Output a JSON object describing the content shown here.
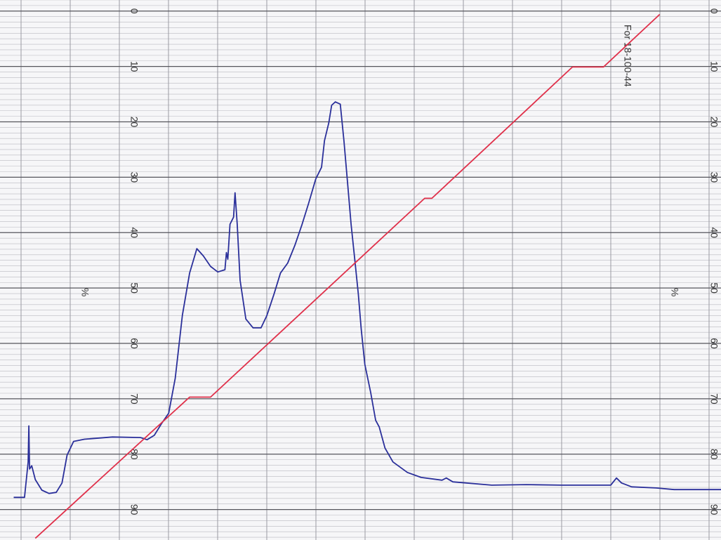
{
  "chart_data": {
    "type": "line",
    "annotation": "For 18-100-44",
    "unit_label": "%",
    "xlim": [
      0,
      100
    ],
    "ylim": [
      -2,
      95.5
    ],
    "y_inverted": true,
    "yticks": [
      0,
      10,
      20,
      30,
      40,
      50,
      60,
      70,
      80,
      90
    ],
    "grid": true,
    "series": [
      {
        "color": "#2a2f9a",
        "x": [
          1.9,
          3.4,
          3.7,
          3.9,
          4.0,
          4.1,
          4.4,
          4.9,
          5.8,
          6.8,
          7.8,
          8.6,
          9.3,
          10.2,
          11.7,
          15.6,
          19.5,
          20.4,
          21.4,
          22.4,
          23.4,
          24.3,
          25.3,
          26.3,
          27.3,
          28.2,
          29.2,
          30.2,
          31.2,
          31.4,
          31.6,
          31.9,
          32.4,
          32.6,
          32.9,
          33.3,
          34.1,
          35.1,
          36.2,
          37.0,
          38.0,
          38.9,
          39.9,
          40.9,
          41.9,
          42.8,
          43.8,
          44.6,
          45.0,
          45.6,
          46.0,
          46.5,
          47.2,
          47.7,
          48.2,
          48.7,
          49.2,
          49.7,
          50.1,
          50.6,
          51.4,
          52.1,
          52.6,
          53.4,
          54.5,
          56.5,
          58.4,
          61.3,
          61.9,
          62.8,
          68.2,
          73.0,
          77.9,
          84.7,
          85.5,
          86.2,
          87.6,
          91.0,
          93.5,
          100
        ],
        "values": [
          87.8,
          87.8,
          84.0,
          81.4,
          74.9,
          82.7,
          82.1,
          84.6,
          86.5,
          87.1,
          86.9,
          85.2,
          80.2,
          77.7,
          77.3,
          76.9,
          77.0,
          77.4,
          76.6,
          74.5,
          72.6,
          66.3,
          54.9,
          47.3,
          42.9,
          44.2,
          46.1,
          47.1,
          46.7,
          43.6,
          44.8,
          38.5,
          37.2,
          32.8,
          38.5,
          48.6,
          55.6,
          57.2,
          57.2,
          55.0,
          51.1,
          47.3,
          45.5,
          42.3,
          38.5,
          34.7,
          30.3,
          28.2,
          23.4,
          20.2,
          17.0,
          16.4,
          16.8,
          23.4,
          30.9,
          38.5,
          44.8,
          51.1,
          57.4,
          63.8,
          68.8,
          73.9,
          75.1,
          78.9,
          81.4,
          83.3,
          84.2,
          84.7,
          84.3,
          85.0,
          85.6,
          85.5,
          85.6,
          85.6,
          84.3,
          85.2,
          85.9,
          86.1,
          86.4,
          86.4
        ]
      },
      {
        "color": "#e0304a",
        "x": [
          4.9,
          26.3,
          29.2,
          58.9,
          59.9,
          79.4,
          83.7,
          91.5
        ],
        "values": [
          95.2,
          69.7,
          69.7,
          33.8,
          33.8,
          10.1,
          10.1,
          0.6
        ]
      }
    ]
  }
}
